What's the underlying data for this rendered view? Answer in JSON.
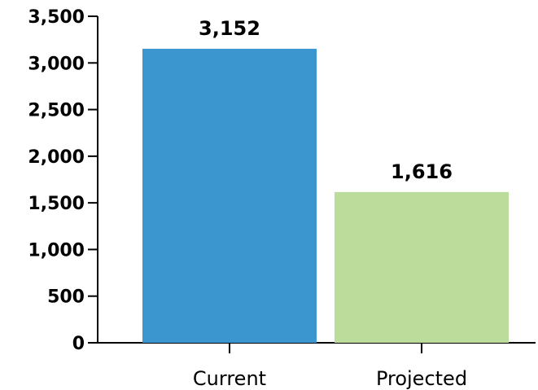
{
  "chart_data": {
    "type": "bar",
    "categories": [
      "Current",
      "Projected"
    ],
    "values": [
      3152,
      1616
    ],
    "data_labels": [
      "3,152",
      "1,616"
    ],
    "colors": [
      "#3b96cf",
      "#bcdc9b"
    ],
    "ylim": [
      0,
      3500
    ],
    "yticks": [
      0,
      500,
      1000,
      1500,
      2000,
      2500,
      3000,
      3500
    ],
    "ytick_labels": [
      "0",
      "500",
      "1,000",
      "1,500",
      "2,000",
      "2,500",
      "3,000",
      "3,500"
    ],
    "title": "",
    "xlabel": "",
    "ylabel": "",
    "grid": false,
    "legend": "none"
  }
}
